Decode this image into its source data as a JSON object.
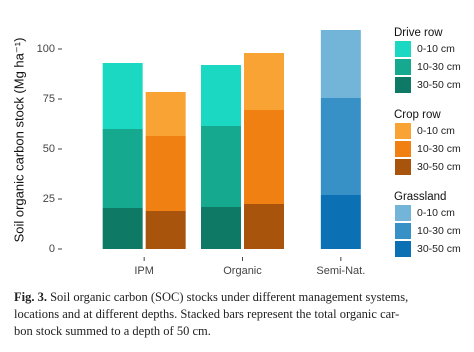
{
  "chart_data": {
    "type": "bar",
    "stacked": true,
    "ylabel": "Soil organic carbon stock (Mg ha⁻¹)",
    "categories": [
      "IPM",
      "Organic",
      "Semi-Nat."
    ],
    "ylim": [
      0,
      112
    ],
    "yticks": [
      0,
      25,
      50,
      75,
      100
    ],
    "legend_groups": [
      {
        "title": "Drive row",
        "series": [
          {
            "name": "0-10 cm",
            "color": "#1bd8c3",
            "values": [
              33,
              30.5,
              null
            ]
          },
          {
            "name": "10-30 cm",
            "color": "#15a98f",
            "values": [
              39.5,
              40.5,
              null
            ]
          },
          {
            "name": "30-50 cm",
            "color": "#0e7a66",
            "values": [
              20.5,
              21,
              null
            ]
          }
        ]
      },
      {
        "title": "Crop row",
        "series": [
          {
            "name": "0-10 cm",
            "color": "#f8a334",
            "values": [
              22,
              28.5,
              null
            ]
          },
          {
            "name": "10-30 cm",
            "color": "#ef8011",
            "values": [
              37.5,
              47,
              null
            ]
          },
          {
            "name": "30-50 cm",
            "color": "#a8540d",
            "values": [
              19,
              22.5,
              null
            ]
          }
        ]
      },
      {
        "title": "Grassland",
        "series": [
          {
            "name": "0-10 cm",
            "color": "#73b5d9",
            "values": [
              null,
              null,
              34
            ]
          },
          {
            "name": "10-30 cm",
            "color": "#3891c6",
            "values": [
              null,
              null,
              48.5
            ]
          },
          {
            "name": "30-50 cm",
            "color": "#0c70b5",
            "values": [
              null,
              null,
              27
            ]
          }
        ]
      }
    ]
  },
  "caption": {
    "label": "Fig. 3.",
    "lines": [
      "Soil organic carbon (SOC) stocks under different management systems,",
      "locations and at different depths. Stacked bars represent the total organic car-",
      "bon stock summed to a depth of 50 cm."
    ]
  }
}
